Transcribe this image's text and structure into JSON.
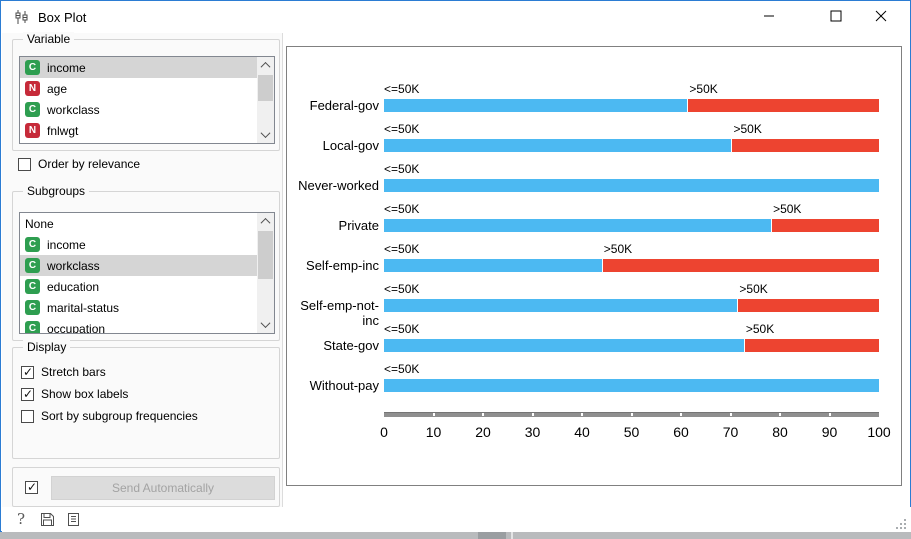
{
  "window": {
    "title": "Box Plot"
  },
  "variable_section": {
    "label": "Variable",
    "items": [
      {
        "type": "C",
        "label": "income",
        "selected": true
      },
      {
        "type": "N",
        "label": "age",
        "selected": false
      },
      {
        "type": "C",
        "label": "workclass",
        "selected": false
      },
      {
        "type": "N",
        "label": "fnlwgt",
        "selected": false
      }
    ],
    "order_checkbox": {
      "label": "Order by relevance",
      "checked": false
    }
  },
  "subgroups_section": {
    "label": "Subgroups",
    "items": [
      {
        "type": "",
        "label": "None",
        "selected": false
      },
      {
        "type": "C",
        "label": "income",
        "selected": false
      },
      {
        "type": "C",
        "label": "workclass",
        "selected": true
      },
      {
        "type": "C",
        "label": "education",
        "selected": false
      },
      {
        "type": "C",
        "label": "marital-status",
        "selected": false
      },
      {
        "type": "C",
        "label": "occupation",
        "selected": false
      }
    ]
  },
  "display_section": {
    "label": "Display",
    "checkboxes": [
      {
        "label": "Stretch bars",
        "checked": true
      },
      {
        "label": "Show box labels",
        "checked": true
      },
      {
        "label": "Sort by subgroup frequencies",
        "checked": false
      }
    ]
  },
  "send_section": {
    "checkbox_checked": true,
    "button_label": "Send Automatically",
    "button_enabled": false
  },
  "status_bar": {
    "icons": [
      "help-icon",
      "save-icon",
      "report-icon"
    ]
  },
  "colors": {
    "bar_blue": "#4cb9f2",
    "bar_red": "#ed4430",
    "icon_categorical": "#2e9e50",
    "icon_numeric": "#c62a39",
    "window_border": "#2b7cd3",
    "selection_gray": "#d5d5d5"
  },
  "chart_data": {
    "type": "bar",
    "orientation": "horizontal",
    "stacked": true,
    "normalized_percent": true,
    "title": "",
    "categories": [
      "Federal-gov",
      "Local-gov",
      "Never-worked",
      "Private",
      "Self-emp-inc",
      "Self-emp-not-inc",
      "State-gov",
      "Without-pay"
    ],
    "series": [
      {
        "name": "<=50K",
        "color": "#4cb9f2",
        "values": [
          61.3,
          70.2,
          100,
          78.2,
          44.0,
          71.4,
          72.7,
          100
        ]
      },
      {
        "name": ">50K",
        "color": "#ed4430",
        "values": [
          38.7,
          29.8,
          0,
          21.8,
          56.0,
          28.6,
          27.3,
          0
        ]
      }
    ],
    "xlim": [
      0,
      100
    ],
    "x_ticks": [
      0,
      10,
      20,
      30,
      40,
      50,
      60,
      70,
      80,
      90,
      100
    ],
    "legend": "none",
    "bar_labels_shown": true
  }
}
